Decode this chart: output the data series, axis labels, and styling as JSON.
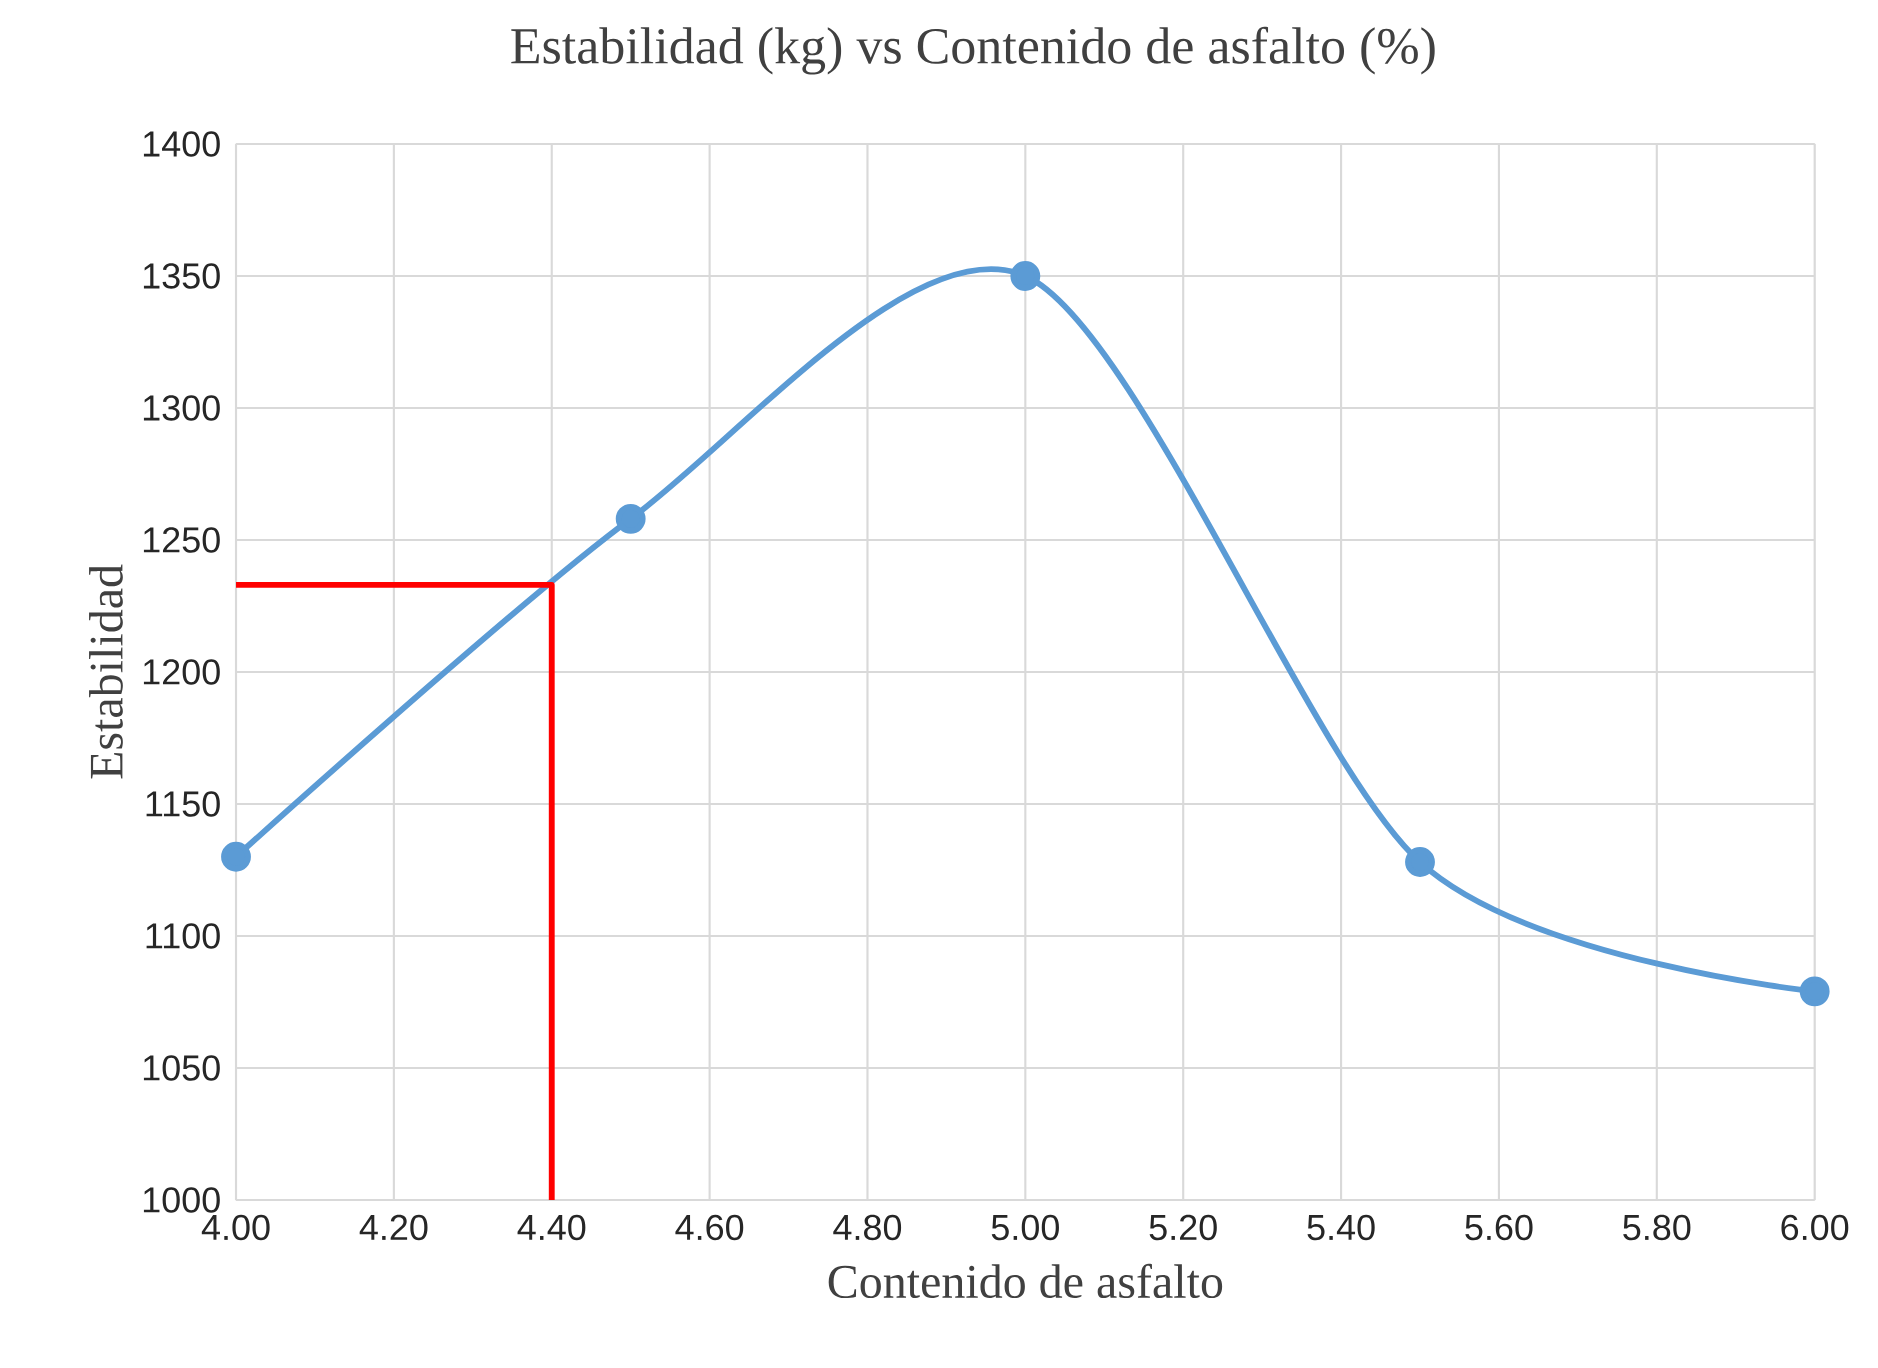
{
  "chart_data": {
    "type": "line",
    "title": "Estabilidad (kg) vs Contenido de asfalto (%)",
    "xlabel": "Contenido de asfalto",
    "ylabel": "Estabilidad",
    "xlim": [
      4,
      6
    ],
    "xticks": [
      {
        "value": 4,
        "label": "4.00"
      },
      {
        "value": 4.2,
        "label": "4.20"
      },
      {
        "value": 4.4,
        "label": "4.40"
      },
      {
        "value": 4.6,
        "label": "4.60"
      },
      {
        "value": 4.8,
        "label": "4.80"
      },
      {
        "value": 5,
        "label": "5.00"
      },
      {
        "value": 5.2,
        "label": "5.20"
      },
      {
        "value": 5.4,
        "label": "5.40"
      },
      {
        "value": 5.6,
        "label": "5.60"
      },
      {
        "value": 5.8,
        "label": "5.80"
      },
      {
        "value": 6,
        "label": "6.00"
      }
    ],
    "ylim": [
      1000,
      1400
    ],
    "yticks": [
      1000,
      1050,
      1100,
      1150,
      1200,
      1250,
      1300,
      1350,
      1400
    ],
    "grid": true,
    "marker": "circle",
    "line_style": "solid",
    "series": [
      {
        "color": "#5b9bd5",
        "x": [
          4,
          4.5,
          5,
          5.5,
          6
        ],
        "values": [
          1130,
          1258,
          1350,
          1128,
          1079
        ]
      },
      {
        "type": "line",
        "color": "#ff0000",
        "marker": "none",
        "x": [
          4,
          4.4,
          4.4
        ],
        "values": [
          1233,
          1233,
          1000
        ]
      }
    ]
  }
}
